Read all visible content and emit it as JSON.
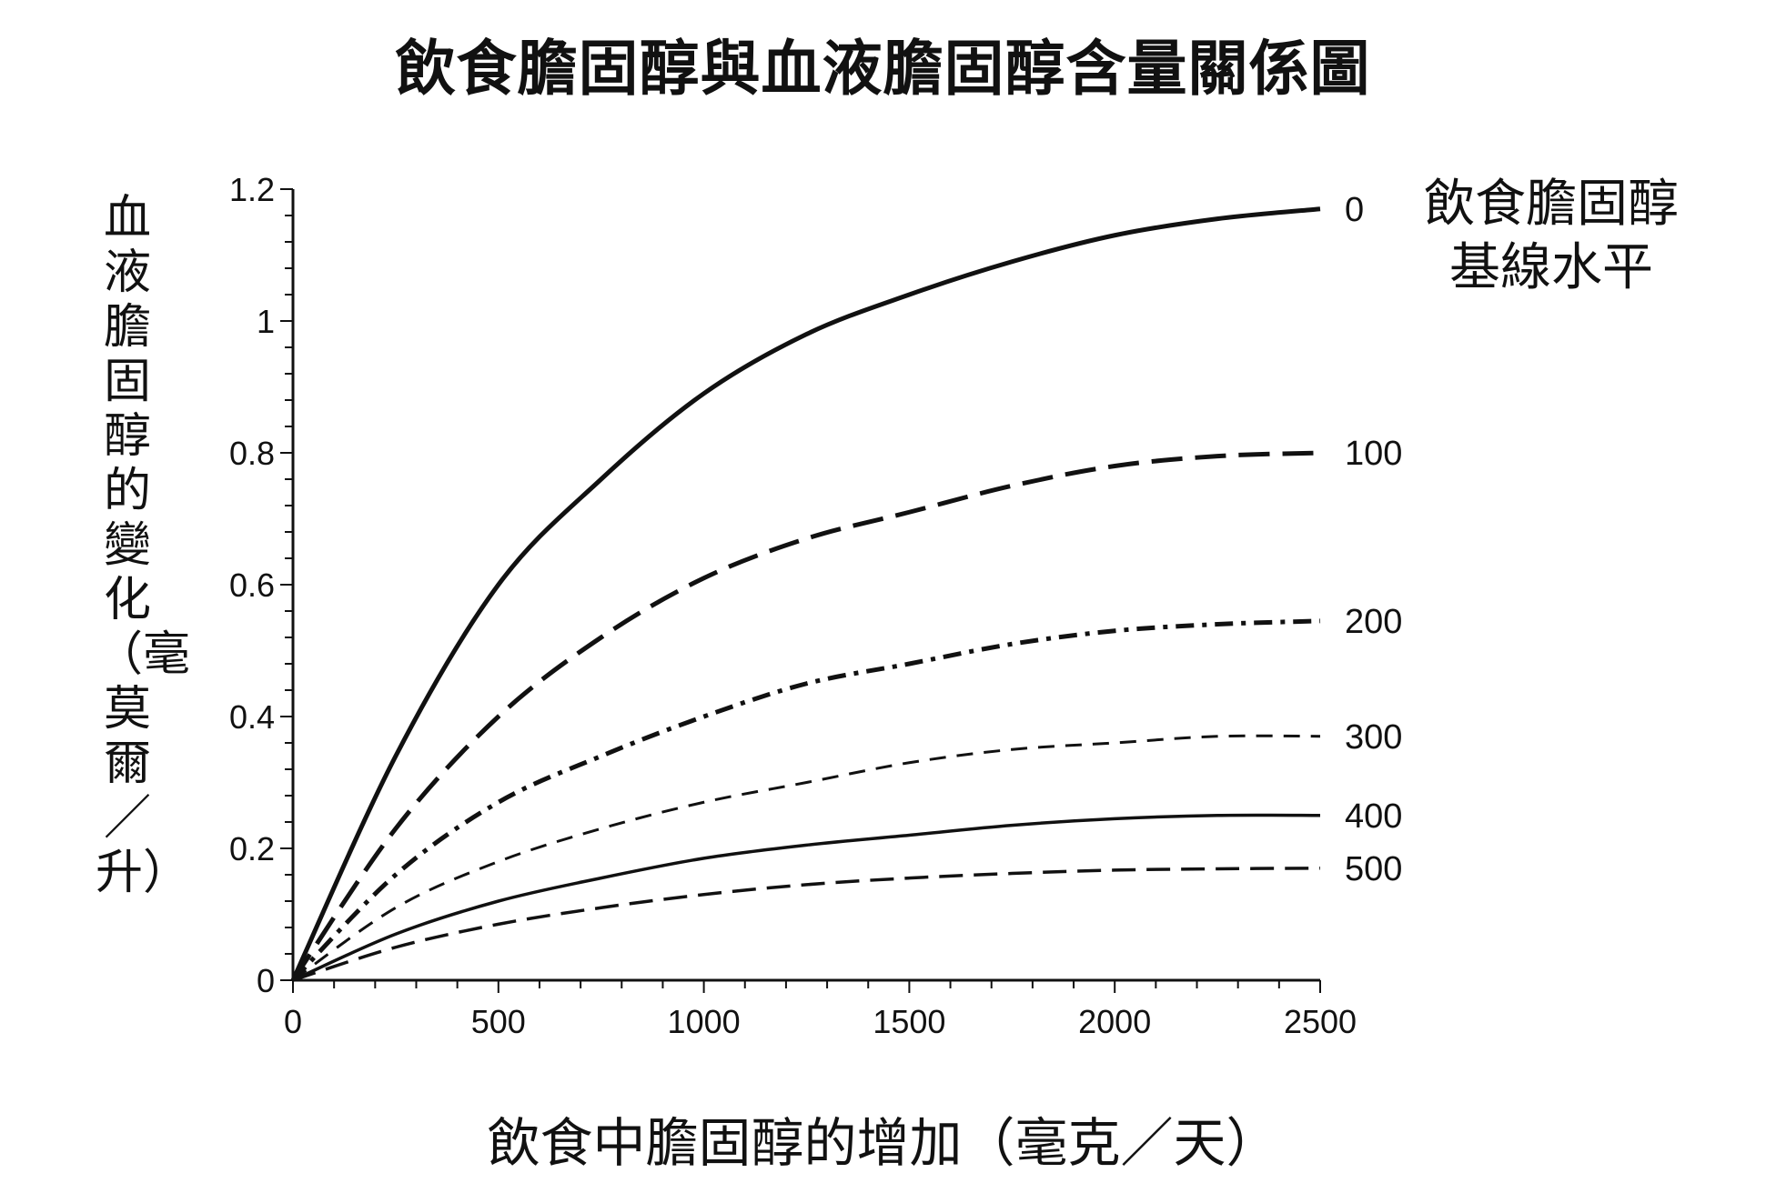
{
  "chart_data": {
    "type": "line",
    "title": "飲食膽固醇與血液膽固醇含量關係圖",
    "xlabel": "飲食中膽固醇的增加（毫克／天）",
    "ylabel": "血液膽固醇的變化（毫莫爾／升）",
    "legend_title": [
      "飲食膽固醇",
      "基線水平"
    ],
    "xlim": [
      0,
      2500
    ],
    "ylim": [
      0,
      1.2
    ],
    "x_ticks": [
      0,
      500,
      1000,
      1500,
      2000,
      2500
    ],
    "y_ticks": [
      0,
      0.2,
      0.4,
      0.6,
      0.8,
      1,
      1.2
    ],
    "y_tick_labels": [
      "0",
      "0.2",
      "0.4",
      "0.6",
      "0.8",
      "1",
      "1.2"
    ],
    "x": [
      0,
      250,
      500,
      750,
      1000,
      1250,
      1500,
      1750,
      2000,
      2250,
      2500
    ],
    "grid": false,
    "series": [
      {
        "name": "0",
        "style": "solid-thick",
        "values": [
          0,
          0.34,
          0.6,
          0.76,
          0.89,
          0.98,
          1.04,
          1.09,
          1.13,
          1.155,
          1.17
        ]
      },
      {
        "name": "100",
        "style": "dash-long",
        "values": [
          0,
          0.23,
          0.4,
          0.52,
          0.61,
          0.67,
          0.71,
          0.75,
          0.78,
          0.795,
          0.8
        ]
      },
      {
        "name": "200",
        "style": "dash-dot",
        "values": [
          0,
          0.16,
          0.27,
          0.34,
          0.4,
          0.45,
          0.48,
          0.51,
          0.53,
          0.54,
          0.545
        ]
      },
      {
        "name": "300",
        "style": "dash-thin",
        "values": [
          0,
          0.11,
          0.18,
          0.23,
          0.27,
          0.3,
          0.33,
          0.35,
          0.36,
          0.37,
          0.37
        ]
      },
      {
        "name": "400",
        "style": "solid-thin",
        "values": [
          0,
          0.07,
          0.12,
          0.155,
          0.185,
          0.205,
          0.22,
          0.235,
          0.245,
          0.25,
          0.25
        ]
      },
      {
        "name": "500",
        "style": "dash-medium",
        "values": [
          0,
          0.05,
          0.085,
          0.11,
          0.13,
          0.145,
          0.155,
          0.162,
          0.167,
          0.169,
          0.17
        ]
      }
    ]
  }
}
